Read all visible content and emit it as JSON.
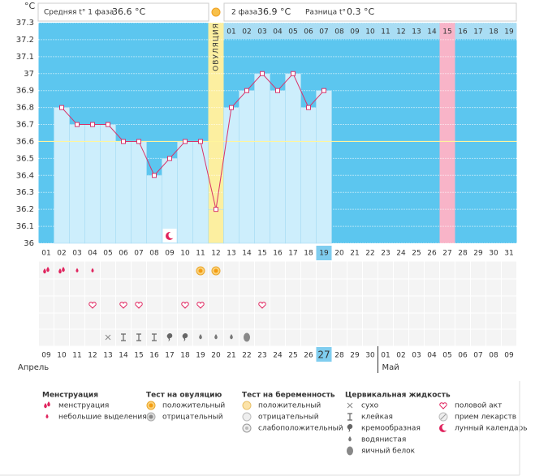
{
  "chart_data": {
    "type": "line",
    "y_label": "°C",
    "header": {
      "phase1_label": "Средняя t° 1 фаза",
      "phase1_value": "36.6 °C",
      "phase2_label": "2 фаза",
      "phase2_value": "36.9 °C",
      "diff_label": "Разница t°",
      "diff_value": "0.3 °C"
    },
    "categories": [
      "01",
      "02",
      "03",
      "04",
      "05",
      "06",
      "07",
      "08",
      "09",
      "10",
      "11",
      "12",
      "13",
      "14",
      "15",
      "16",
      "17",
      "18",
      "19",
      "20",
      "21",
      "22",
      "23",
      "24",
      "25",
      "26",
      "27",
      "28",
      "29",
      "30",
      "31"
    ],
    "top_labels": [
      null,
      null,
      null,
      null,
      null,
      null,
      null,
      null,
      null,
      null,
      null,
      "ОВУЛЯЦИЯ",
      "01",
      "02",
      "03",
      "04",
      "05",
      "06",
      "07",
      "08",
      "09",
      "10",
      "11",
      "12",
      "13",
      "14",
      "15",
      "16",
      "17",
      "18",
      "19"
    ],
    "series": [
      {
        "name": "t°",
        "color": "#d8336a",
        "values": [
          null,
          36.8,
          36.7,
          36.7,
          36.7,
          36.6,
          36.6,
          36.4,
          36.5,
          36.6,
          36.6,
          36.2,
          36.8,
          36.9,
          37.0,
          36.9,
          37.0,
          36.8,
          36.9,
          null,
          null,
          null,
          null,
          null,
          null,
          null,
          null,
          null,
          null,
          null,
          null
        ]
      }
    ],
    "coverline": 36.6,
    "ylim": [
      36,
      37.3
    ],
    "yticks": [
      36,
      36.1,
      36.2,
      36.3,
      36.4,
      36.5,
      36.6,
      36.7,
      36.8,
      36.9,
      37,
      37.1,
      37.2,
      37.3
    ],
    "grid": true,
    "ovulation_day": "12",
    "today": "19",
    "expected_period_day": "27",
    "dates": [
      "09",
      "10",
      "11",
      "12",
      "13",
      "14",
      "15",
      "16",
      "17",
      "18",
      "19",
      "20",
      "21",
      "22",
      "23",
      "24",
      "25",
      "26",
      "27",
      "28",
      "29",
      "30",
      "01",
      "02",
      "03",
      "04",
      "05",
      "06",
      "07",
      "08",
      "09"
    ],
    "red_dates": [
      false,
      false,
      false,
      false,
      true,
      true,
      false,
      false,
      false,
      false,
      false,
      true,
      true,
      false,
      false,
      false,
      false,
      false,
      false,
      true,
      false,
      false,
      false,
      false,
      false,
      true,
      true,
      false,
      false,
      false,
      false
    ],
    "months": [
      {
        "label": "Апрель",
        "start": "01"
      },
      {
        "label": "Май",
        "start": "23"
      }
    ],
    "menstruation": [
      "менструация",
      "менструация",
      "небольшие выделения",
      "небольшие выделения",
      null,
      null,
      null,
      null,
      null,
      null,
      null,
      null,
      null,
      null,
      null,
      null,
      null,
      null,
      null,
      null,
      null,
      null,
      null,
      null,
      null,
      null,
      null,
      null,
      null,
      null,
      null
    ],
    "ovulation_test": [
      null,
      null,
      null,
      null,
      null,
      null,
      null,
      null,
      null,
      null,
      "положительный",
      "положительный",
      null,
      null,
      null,
      null,
      null,
      null,
      null,
      null,
      null,
      null,
      null,
      null,
      null,
      null,
      null,
      null,
      null,
      null,
      null
    ],
    "intercourse": [
      false,
      false,
      false,
      true,
      false,
      true,
      true,
      false,
      false,
      true,
      true,
      false,
      false,
      false,
      true,
      false,
      false,
      false,
      false,
      false,
      false,
      false,
      false,
      false,
      false,
      false,
      false,
      false,
      false,
      false,
      false
    ],
    "cervical": [
      null,
      null,
      null,
      null,
      "сухо",
      "клейкая",
      "клейкая",
      "клейкая",
      "кремообразная",
      "кремообразная",
      "водянистая",
      "водянистая",
      "водянистая",
      "яичный белок",
      null,
      null,
      null,
      null,
      null,
      null,
      null,
      null,
      null,
      null,
      null,
      null,
      null,
      null,
      null,
      null,
      null
    ],
    "lunar": [
      false,
      false,
      false,
      false,
      false,
      false,
      false,
      false,
      true,
      false,
      false,
      false,
      false,
      false,
      false,
      false,
      false,
      false,
      false,
      false,
      false,
      false,
      false,
      false,
      false,
      false,
      false,
      false,
      false,
      false,
      false
    ],
    "legend": [
      {
        "title": "Менструация",
        "items": [
          "менструация",
          "небольшие выделения"
        ]
      },
      {
        "title": "Тест на овуляцию",
        "items": [
          "положительный",
          "отрицательный"
        ]
      },
      {
        "title": "Тест на беременность",
        "items": [
          "положительный",
          "отрицательный",
          "слабоположительный"
        ]
      },
      {
        "title": "Цервикальная жидкость",
        "items": [
          "сухо",
          "клейкая",
          "кремообразная",
          "водянистая",
          "яичный белок"
        ]
      },
      {
        "title": null,
        "items": [
          "половой акт",
          "прием лекарств",
          "лунный календарь"
        ]
      }
    ]
  }
}
